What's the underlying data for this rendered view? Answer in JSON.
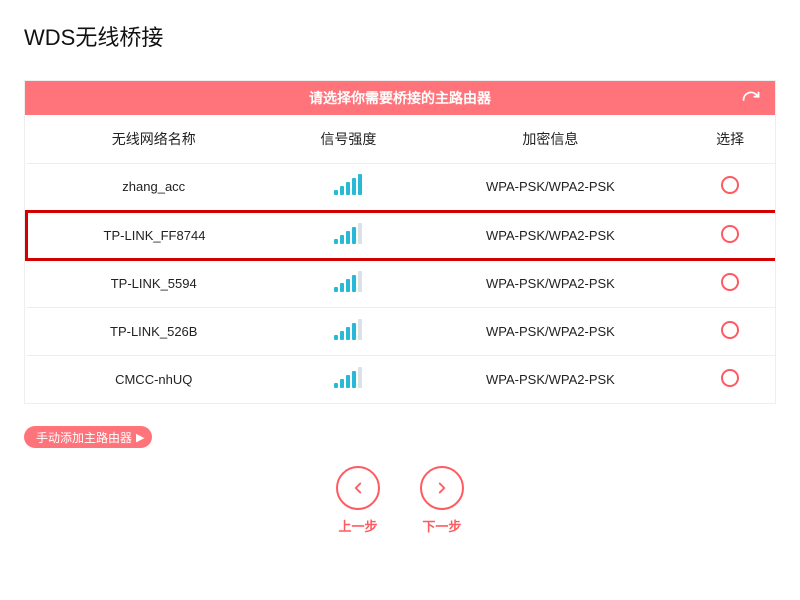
{
  "title": "WDS无线桥接",
  "panel": {
    "header": "请选择你需要桥接的主路由器",
    "columns": {
      "ssid": "无线网络名称",
      "signal": "信号强度",
      "encryption": "加密信息",
      "select": "选择"
    }
  },
  "accent_color": "#ff747b",
  "highlight_color": "#d40000",
  "signal_color": "#27b9d6",
  "networks": [
    {
      "ssid": "zhang_acc",
      "signal": 5,
      "enc": "WPA-PSK/WPA2-PSK",
      "highlight": false
    },
    {
      "ssid": "TP-LINK_FF8744",
      "signal": 4,
      "enc": "WPA-PSK/WPA2-PSK",
      "highlight": true
    },
    {
      "ssid": "TP-LINK_5594",
      "signal": 4,
      "enc": "WPA-PSK/WPA2-PSK",
      "highlight": false
    },
    {
      "ssid": "TP-LINK_526B",
      "signal": 4,
      "enc": "WPA-PSK/WPA2-PSK",
      "highlight": false
    },
    {
      "ssid": "CMCC-nhUQ",
      "signal": 4,
      "enc": "WPA-PSK/WPA2-PSK",
      "highlight": false
    }
  ],
  "manual_add_label": "手动添加主路由器",
  "nav": {
    "prev": "上一步",
    "next": "下一步"
  }
}
